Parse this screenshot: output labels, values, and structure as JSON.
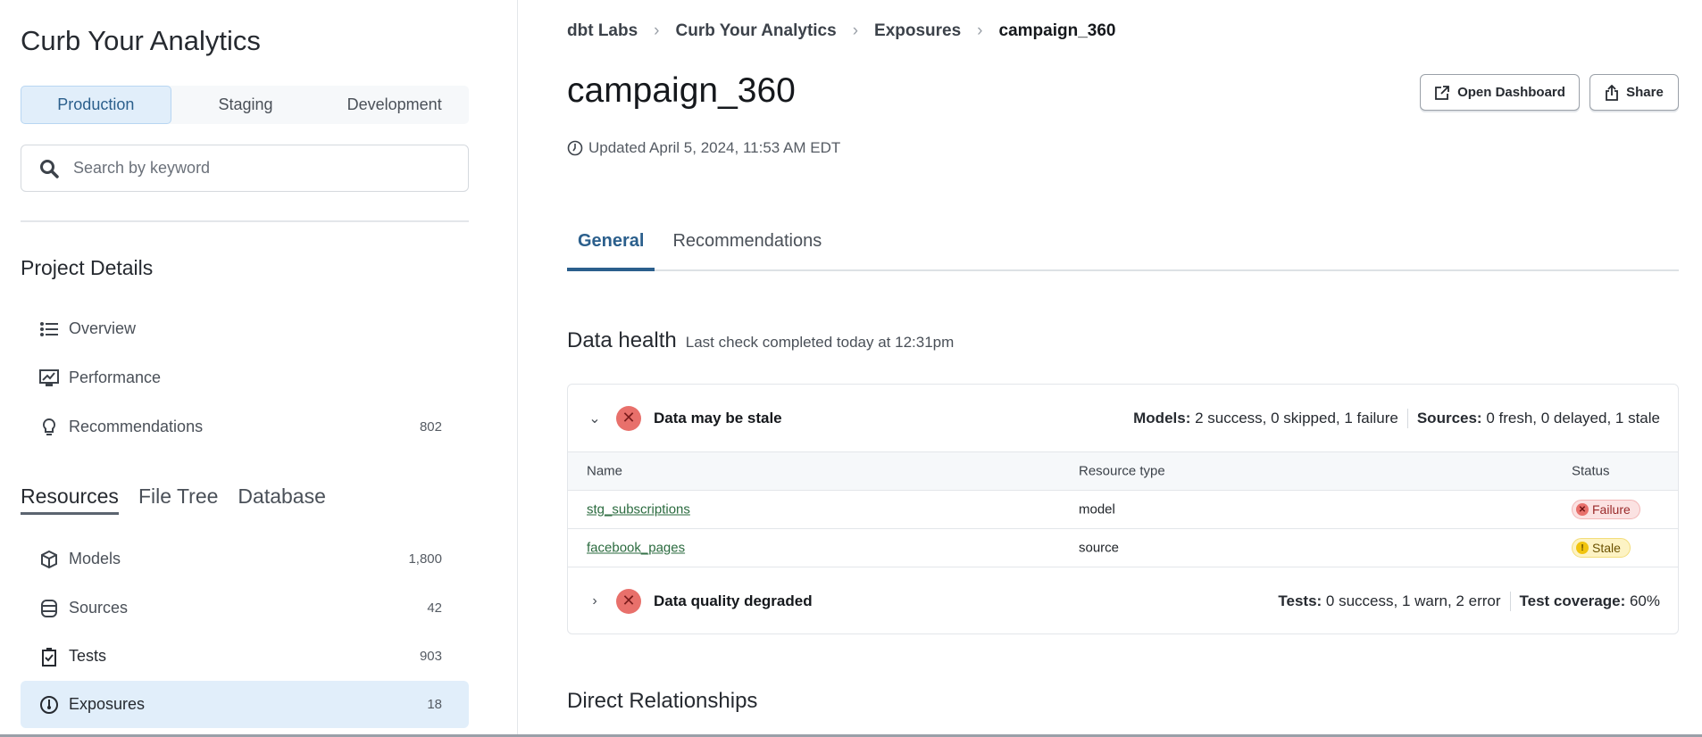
{
  "sidebar": {
    "title": "Curb Your Analytics",
    "environments": [
      "Production",
      "Staging",
      "Development"
    ],
    "active_environment": "Production",
    "search_placeholder": "Search by keyword",
    "project_details_title": "Project Details",
    "project_items": [
      {
        "label": "Overview",
        "icon": "list-icon",
        "count": ""
      },
      {
        "label": "Performance",
        "icon": "performance-chart-icon",
        "count": ""
      },
      {
        "label": "Recommendations",
        "icon": "lightbulb-icon",
        "count": "802"
      }
    ],
    "resource_tabs": [
      "Resources",
      "File Tree",
      "Database"
    ],
    "resource_items": [
      {
        "label": "Models",
        "icon": "cube-icon",
        "count": "1,800"
      },
      {
        "label": "Sources",
        "icon": "database-icon",
        "count": "42"
      },
      {
        "label": "Tests",
        "icon": "clipboard-check-icon",
        "count": "903"
      },
      {
        "label": "Exposures",
        "icon": "gauge-icon",
        "count": "18",
        "selected": true
      }
    ]
  },
  "main": {
    "breadcrumb": [
      "dbt Labs",
      "Curb Your Analytics",
      "Exposures",
      "campaign_360"
    ],
    "title": "campaign_360",
    "open_dashboard": "Open Dashboard",
    "share": "Share",
    "updated": "Updated April 5, 2024, 11:53 AM EDT",
    "tabs": [
      "General",
      "Recommendations"
    ],
    "data_health": {
      "title": "Data health",
      "subtitle": "Last check completed today at 12:31pm"
    },
    "health_groups": [
      {
        "title": "Data may be stale",
        "expanded": true,
        "summary": [
          {
            "label": "Models:",
            "text": " 2 success, 0 skipped, 1 failure"
          },
          {
            "label": "Sources:",
            "text": " 0 fresh, 0 delayed, 1 stale"
          }
        ]
      },
      {
        "title": "Data quality degraded",
        "expanded": false,
        "summary": [
          {
            "label": "Tests:",
            "text": " 0 success, 1 warn, 2 error"
          },
          {
            "label": "Test coverage:",
            "text": " 60%"
          }
        ]
      }
    ],
    "table": {
      "headers": [
        "Name",
        "Resource type",
        "Status"
      ],
      "rows": [
        {
          "name": "stg_subscriptions",
          "type": "model",
          "status": "Failure"
        },
        {
          "name": "facebook_pages",
          "type": "source",
          "status": "Stale"
        }
      ]
    },
    "direct_relationships": "Direct Relationships"
  },
  "colors": {
    "accent": "#2b5f8c",
    "selected_bg": "#e1eefa",
    "error": "#e8706b",
    "warning": "#f1c40f",
    "link": "#2b6b3f"
  }
}
